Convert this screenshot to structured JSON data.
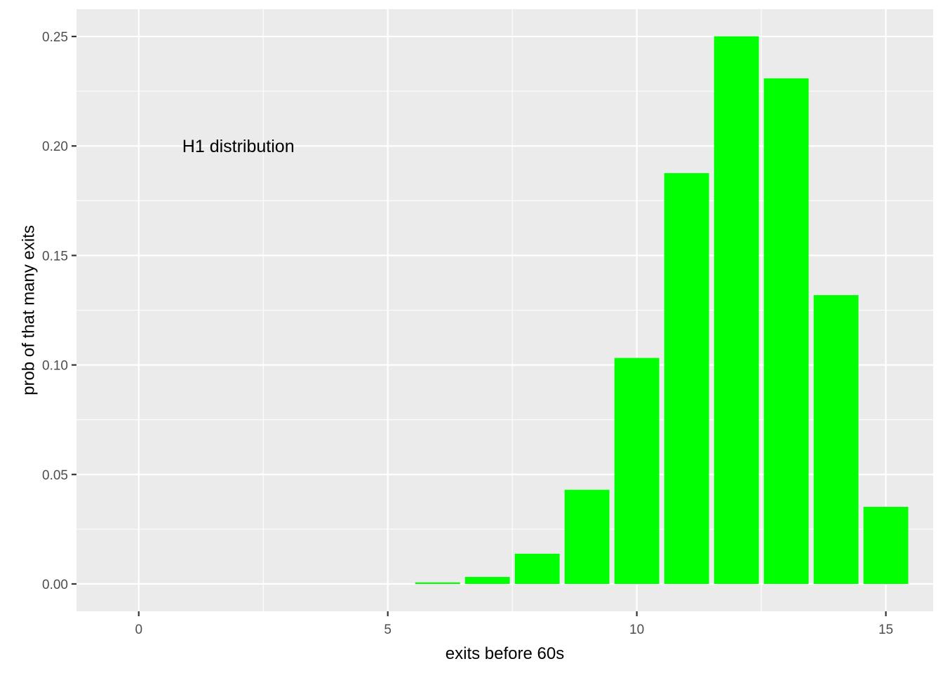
{
  "chart_data": {
    "type": "bar",
    "title": "",
    "xlabel": "exits before 60s",
    "ylabel": "prob of that many exits",
    "annotation": {
      "text": "H1 distribution",
      "x": 2,
      "y": 0.2
    },
    "x": [
      0,
      1,
      2,
      3,
      4,
      5,
      6,
      7,
      8,
      9,
      10,
      11,
      12,
      13,
      14,
      15
    ],
    "values": [
      0,
      0,
      0,
      0,
      0,
      0,
      0.0007,
      0.0032,
      0.0138,
      0.043,
      0.1032,
      0.1876,
      0.2501,
      0.2309,
      0.1319,
      0.0352
    ],
    "xlim": [
      -1.25,
      15.95
    ],
    "ylim": [
      -0.0125,
      0.2625
    ],
    "x_ticks": [
      0,
      5,
      10,
      15
    ],
    "x_tick_labels": [
      "0",
      "5",
      "10",
      "15"
    ],
    "y_ticks": [
      0,
      0.05,
      0.1,
      0.15,
      0.2,
      0.25
    ],
    "y_tick_labels": [
      "0.00",
      "0.05",
      "0.10",
      "0.15",
      "0.20",
      "0.25"
    ],
    "grid": true,
    "bar_color": "#00ff00",
    "panel_color": "#ebebeb",
    "grid_color": "#ffffff"
  }
}
